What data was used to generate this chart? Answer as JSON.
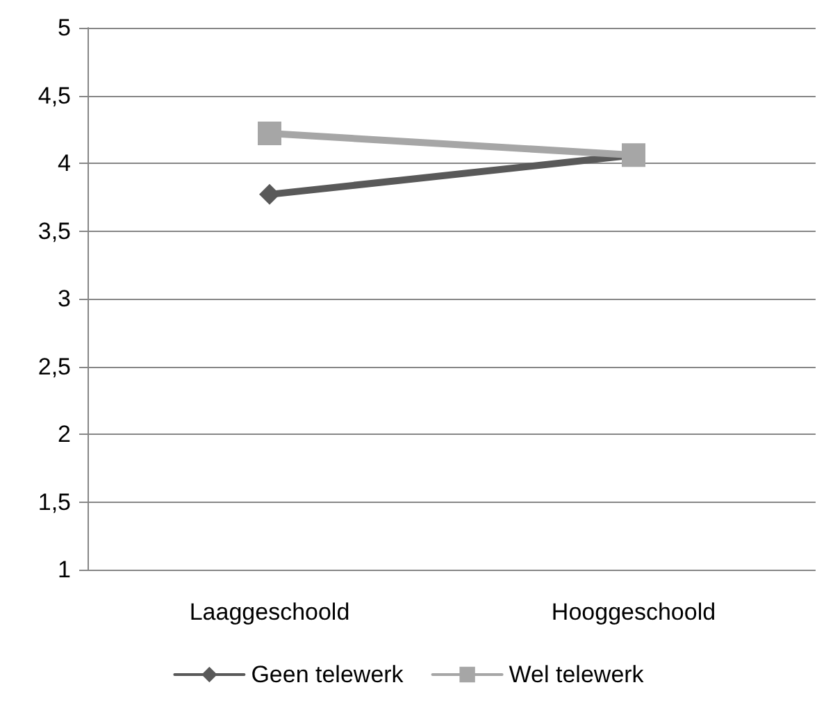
{
  "chart_data": {
    "type": "line",
    "categories": [
      "Laaggeschoold",
      "Hooggeschoold"
    ],
    "series": [
      {
        "name": "Geen telewerk",
        "color": "#595959",
        "marker": "diamond",
        "values": [
          3.77,
          4.06
        ]
      },
      {
        "name": "Wel telewerk",
        "color": "#a6a6a6",
        "marker": "square",
        "values": [
          4.22,
          4.06
        ]
      }
    ],
    "ylim": [
      1,
      5
    ],
    "yticks": [
      1,
      {
        "value": 1.5,
        "label": "1,5"
      },
      2,
      {
        "value": 2.5,
        "label": "2,5"
      },
      3,
      {
        "value": 3.5,
        "label": "3,5"
      },
      4,
      {
        "value": 4.5,
        "label": "4,5"
      },
      5
    ],
    "grid": "y",
    "legend": "bottom",
    "line_style": "solid"
  }
}
